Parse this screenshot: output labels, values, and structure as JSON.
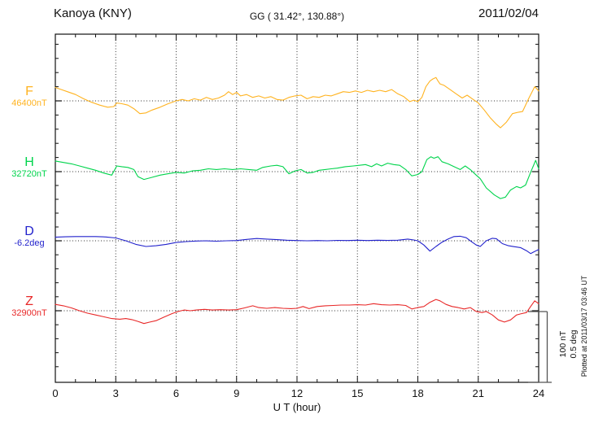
{
  "header": {
    "station": "Kanoya (KNY)",
    "coordinates": "GG ( 31.42°, 130.88°)",
    "date": "2011/02/04"
  },
  "axis": {
    "xlabel": "U T (hour)",
    "x_ticks": [
      "0",
      "3",
      "6",
      "9",
      "12",
      "15",
      "18",
      "21",
      "24"
    ]
  },
  "scalebar": {
    "nt": "100 nT",
    "deg": "0.5 deg"
  },
  "note": "Plotted at 2011/03/17 03:46 UT",
  "chart_data": {
    "type": "line",
    "title": "Kanoya (KNY) magnetogram",
    "date": "2011/02/04",
    "xlabel": "U T (hour)",
    "xlim": [
      0,
      24
    ],
    "x_ticks": [
      0,
      3,
      6,
      9,
      12,
      15,
      18,
      21,
      24
    ],
    "grid": "dotted vertical lines every 3 h; dotted horizontal line at each component baseline",
    "scale_per_division": {
      "nT": 100,
      "deg": 0.5
    },
    "series": [
      {
        "name": "F",
        "unit": "nT",
        "baseline": 46400,
        "baseline_label": "46400nT",
        "color": "#ffb320",
        "points": [
          [
            0,
            19
          ],
          [
            0.3,
            16
          ],
          [
            0.6,
            13
          ],
          [
            1,
            9
          ],
          [
            1.4,
            3
          ],
          [
            1.8,
            -2
          ],
          [
            2.2,
            -6
          ],
          [
            2.6,
            -9
          ],
          [
            2.9,
            -8
          ],
          [
            3.05,
            -3
          ],
          [
            3.3,
            -4
          ],
          [
            3.6,
            -6
          ],
          [
            3.9,
            -11
          ],
          [
            4.2,
            -18
          ],
          [
            4.5,
            -17
          ],
          [
            4.8,
            -13
          ],
          [
            5.2,
            -9
          ],
          [
            5.6,
            -4
          ],
          [
            6,
            0
          ],
          [
            6.3,
            2
          ],
          [
            6.6,
            0
          ],
          [
            6.9,
            3
          ],
          [
            7.2,
            1
          ],
          [
            7.5,
            5
          ],
          [
            7.8,
            2
          ],
          [
            8.1,
            4
          ],
          [
            8.4,
            8
          ],
          [
            8.6,
            13
          ],
          [
            8.8,
            9
          ],
          [
            9,
            12
          ],
          [
            9.2,
            7
          ],
          [
            9.5,
            9
          ],
          [
            9.8,
            5
          ],
          [
            10.1,
            7
          ],
          [
            10.4,
            4
          ],
          [
            10.7,
            6
          ],
          [
            11,
            2
          ],
          [
            11.3,
            1
          ],
          [
            11.6,
            5
          ],
          [
            11.9,
            7
          ],
          [
            12.2,
            8
          ],
          [
            12.5,
            3
          ],
          [
            12.8,
            6
          ],
          [
            13.1,
            5
          ],
          [
            13.4,
            8
          ],
          [
            13.7,
            7
          ],
          [
            14,
            10
          ],
          [
            14.3,
            13
          ],
          [
            14.6,
            12
          ],
          [
            14.9,
            14
          ],
          [
            15.2,
            12
          ],
          [
            15.5,
            15
          ],
          [
            15.8,
            13
          ],
          [
            16.1,
            15
          ],
          [
            16.4,
            13
          ],
          [
            16.7,
            16
          ],
          [
            17,
            10
          ],
          [
            17.3,
            6
          ],
          [
            17.6,
            -1
          ],
          [
            17.8,
            1
          ],
          [
            18,
            -1
          ],
          [
            18.2,
            5
          ],
          [
            18.4,
            20
          ],
          [
            18.6,
            28
          ],
          [
            18.75,
            31
          ],
          [
            18.9,
            33
          ],
          [
            19,
            28
          ],
          [
            19.1,
            24
          ],
          [
            19.3,
            22
          ],
          [
            19.6,
            16
          ],
          [
            19.9,
            10
          ],
          [
            20.2,
            4
          ],
          [
            20.45,
            8
          ],
          [
            20.7,
            3
          ],
          [
            21,
            -3
          ],
          [
            21.3,
            -13
          ],
          [
            21.6,
            -24
          ],
          [
            21.9,
            -33
          ],
          [
            22.1,
            -38
          ],
          [
            22.4,
            -30
          ],
          [
            22.7,
            -18
          ],
          [
            23,
            -16
          ],
          [
            23.2,
            -15
          ],
          [
            23.5,
            3
          ],
          [
            23.8,
            20
          ],
          [
            24,
            14
          ]
        ]
      },
      {
        "name": "H",
        "unit": "nT",
        "baseline": 32720,
        "baseline_label": "32720nT",
        "color": "#00d44c",
        "points": [
          [
            0,
            15
          ],
          [
            0.4,
            13
          ],
          [
            0.8,
            11
          ],
          [
            1.2,
            8
          ],
          [
            1.6,
            5
          ],
          [
            2,
            2
          ],
          [
            2.4,
            -2
          ],
          [
            2.8,
            -5
          ],
          [
            3.05,
            8
          ],
          [
            3.3,
            7
          ],
          [
            3.6,
            6
          ],
          [
            3.9,
            3
          ],
          [
            4.1,
            -7
          ],
          [
            4.4,
            -11
          ],
          [
            4.8,
            -8
          ],
          [
            5.2,
            -5
          ],
          [
            5.6,
            -3
          ],
          [
            6,
            -1
          ],
          [
            6.4,
            -2
          ],
          [
            6.8,
            1
          ],
          [
            7.2,
            2
          ],
          [
            7.6,
            4
          ],
          [
            8,
            3
          ],
          [
            8.4,
            4
          ],
          [
            8.8,
            3
          ],
          [
            9.2,
            4
          ],
          [
            9.6,
            3
          ],
          [
            10,
            2
          ],
          [
            10.3,
            6
          ],
          [
            10.7,
            8
          ],
          [
            11,
            9
          ],
          [
            11.3,
            7
          ],
          [
            11.6,
            -3
          ],
          [
            11.9,
            1
          ],
          [
            12.2,
            3
          ],
          [
            12.5,
            -2
          ],
          [
            12.8,
            -1
          ],
          [
            13.1,
            2
          ],
          [
            13.4,
            3
          ],
          [
            13.7,
            4
          ],
          [
            14,
            5
          ],
          [
            14.4,
            7
          ],
          [
            14.8,
            8
          ],
          [
            15.1,
            9
          ],
          [
            15.4,
            10
          ],
          [
            15.7,
            7
          ],
          [
            15.95,
            11
          ],
          [
            16.2,
            8
          ],
          [
            16.5,
            12
          ],
          [
            16.8,
            10
          ],
          [
            17.1,
            9
          ],
          [
            17.4,
            3
          ],
          [
            17.7,
            -6
          ],
          [
            18,
            -4
          ],
          [
            18.2,
            0
          ],
          [
            18.45,
            17
          ],
          [
            18.65,
            21
          ],
          [
            18.8,
            19
          ],
          [
            19,
            21
          ],
          [
            19.2,
            14
          ],
          [
            19.5,
            11
          ],
          [
            19.8,
            7
          ],
          [
            20.1,
            3
          ],
          [
            20.35,
            8
          ],
          [
            20.6,
            3
          ],
          [
            20.9,
            -5
          ],
          [
            21.1,
            -10
          ],
          [
            21.4,
            -23
          ],
          [
            21.8,
            -33
          ],
          [
            22.1,
            -38
          ],
          [
            22.35,
            -36
          ],
          [
            22.6,
            -26
          ],
          [
            22.9,
            -21
          ],
          [
            23.1,
            -23
          ],
          [
            23.35,
            -19
          ],
          [
            23.6,
            -1
          ],
          [
            23.85,
            16
          ],
          [
            24,
            4
          ]
        ]
      },
      {
        "name": "D",
        "unit": "deg",
        "baseline": -6.2,
        "baseline_label": "-6.2deg",
        "color": "#2222cc",
        "points": [
          [
            0,
            0.025
          ],
          [
            0.5,
            0.028
          ],
          [
            1,
            0.03
          ],
          [
            1.5,
            0.03
          ],
          [
            2,
            0.03
          ],
          [
            2.5,
            0.027
          ],
          [
            3,
            0.02
          ],
          [
            3.5,
            0
          ],
          [
            4,
            -0.025
          ],
          [
            4.5,
            -0.04
          ],
          [
            5,
            -0.035
          ],
          [
            5.5,
            -0.025
          ],
          [
            6,
            -0.012
          ],
          [
            6.5,
            -0.006
          ],
          [
            7,
            -0.002
          ],
          [
            7.5,
            0
          ],
          [
            8,
            -0.003
          ],
          [
            8.5,
            0
          ],
          [
            9,
            0.002
          ],
          [
            9.5,
            0.01
          ],
          [
            10,
            0.016
          ],
          [
            10.5,
            0.012
          ],
          [
            11,
            0.008
          ],
          [
            11.5,
            0.004
          ],
          [
            12,
            0.002
          ],
          [
            12.5,
            0
          ],
          [
            13,
            0.002
          ],
          [
            13.5,
            0
          ],
          [
            14,
            0.003
          ],
          [
            14.5,
            0.002
          ],
          [
            15,
            0.004
          ],
          [
            15.5,
            0.002
          ],
          [
            16,
            0.004
          ],
          [
            16.5,
            0.003
          ],
          [
            17,
            0.004
          ],
          [
            17.5,
            0.012
          ],
          [
            17.8,
            0.006
          ],
          [
            18,
            0
          ],
          [
            18.3,
            -0.03
          ],
          [
            18.6,
            -0.073
          ],
          [
            18.9,
            -0.04
          ],
          [
            19.2,
            -0.01
          ],
          [
            19.5,
            0.012
          ],
          [
            19.8,
            0.03
          ],
          [
            20.1,
            0.032
          ],
          [
            20.4,
            0.022
          ],
          [
            20.7,
            -0.01
          ],
          [
            20.9,
            -0.03
          ],
          [
            21.1,
            -0.04
          ],
          [
            21.4,
            0
          ],
          [
            21.7,
            0.018
          ],
          [
            21.9,
            0.015
          ],
          [
            22.2,
            -0.02
          ],
          [
            22.5,
            -0.035
          ],
          [
            22.8,
            -0.042
          ],
          [
            23.1,
            -0.048
          ],
          [
            23.4,
            -0.07
          ],
          [
            23.6,
            -0.09
          ],
          [
            23.8,
            -0.075
          ],
          [
            24,
            -0.062
          ]
        ]
      },
      {
        "name": "Z",
        "unit": "nT",
        "baseline": 32900,
        "baseline_label": "32900nT",
        "color": "#e82828",
        "points": [
          [
            0,
            9
          ],
          [
            0.4,
            7
          ],
          [
            0.8,
            4
          ],
          [
            1.2,
            0
          ],
          [
            1.6,
            -3.5
          ],
          [
            2,
            -6
          ],
          [
            2.4,
            -8.5
          ],
          [
            2.8,
            -11
          ],
          [
            3.2,
            -12
          ],
          [
            3.5,
            -11
          ],
          [
            3.8,
            -12.5
          ],
          [
            4.1,
            -15
          ],
          [
            4.4,
            -18
          ],
          [
            4.7,
            -16
          ],
          [
            5,
            -14
          ],
          [
            5.4,
            -9
          ],
          [
            5.8,
            -4
          ],
          [
            6.1,
            -1
          ],
          [
            6.4,
            1
          ],
          [
            6.7,
            0
          ],
          [
            7,
            1
          ],
          [
            7.4,
            2
          ],
          [
            7.8,
            1
          ],
          [
            8.2,
            1.5
          ],
          [
            8.6,
            1
          ],
          [
            9,
            1.5
          ],
          [
            9.4,
            4
          ],
          [
            9.8,
            7
          ],
          [
            10.1,
            4.5
          ],
          [
            10.5,
            3.5
          ],
          [
            10.9,
            4.5
          ],
          [
            11.3,
            3.5
          ],
          [
            11.7,
            3
          ],
          [
            12,
            3.5
          ],
          [
            12.3,
            6
          ],
          [
            12.6,
            3
          ],
          [
            13,
            6
          ],
          [
            13.4,
            7
          ],
          [
            13.8,
            7.5
          ],
          [
            14.2,
            8
          ],
          [
            14.6,
            8
          ],
          [
            15,
            8.5
          ],
          [
            15.4,
            8
          ],
          [
            15.8,
            10
          ],
          [
            16.2,
            8.5
          ],
          [
            16.6,
            8
          ],
          [
            17,
            8.5
          ],
          [
            17.4,
            7.5
          ],
          [
            17.7,
            2.5
          ],
          [
            18,
            4.5
          ],
          [
            18.3,
            6
          ],
          [
            18.6,
            12
          ],
          [
            18.9,
            16
          ],
          [
            19.1,
            14
          ],
          [
            19.4,
            9
          ],
          [
            19.7,
            6
          ],
          [
            20,
            4.5
          ],
          [
            20.3,
            2.5
          ],
          [
            20.6,
            4.5
          ],
          [
            20.9,
            -1
          ],
          [
            21.2,
            -2.5
          ],
          [
            21.4,
            -1
          ],
          [
            21.7,
            -6
          ],
          [
            22,
            -13
          ],
          [
            22.3,
            -16
          ],
          [
            22.6,
            -13
          ],
          [
            22.9,
            -6
          ],
          [
            23.1,
            -4.5
          ],
          [
            23.4,
            -2.5
          ],
          [
            23.6,
            6
          ],
          [
            23.8,
            14
          ],
          [
            24,
            10
          ]
        ]
      }
    ]
  }
}
